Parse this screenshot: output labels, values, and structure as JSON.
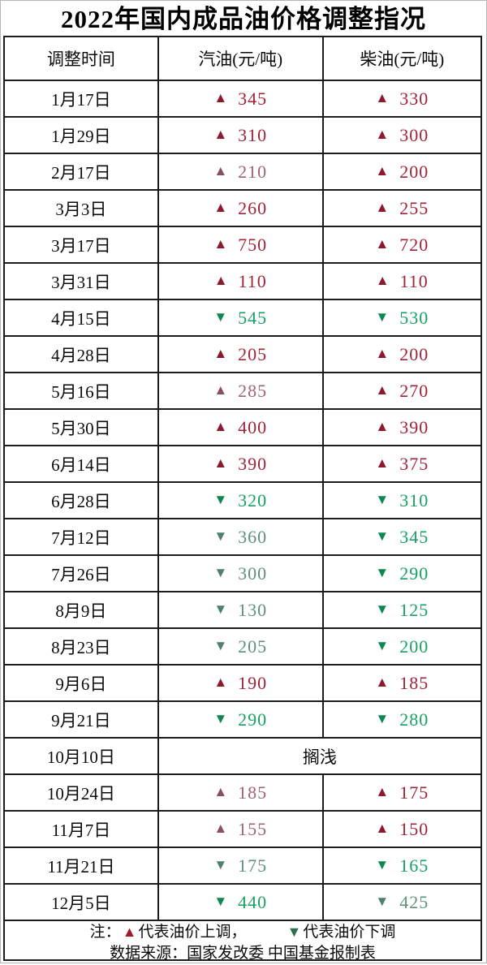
{
  "title": "2022年国内成品油价格调整指况",
  "columns": [
    "调整时间",
    "汽油(元/吨)",
    "柴油(元/吨)"
  ],
  "hold_text": "搁浅",
  "legend": {
    "note_prefix": "注：",
    "up_symbol": "▲",
    "up_text": "代表油价上调，",
    "down_symbol": "▼",
    "down_text": "代表油价下调",
    "source": "数据来源：国家发改委  中国基金报制表"
  },
  "colors": {
    "border_dark": "#1c1c1c",
    "border_light": "#b5b5b5",
    "up_strong_icon": "#8e1830",
    "up_strong_text": "#a02439",
    "up_muted_icon": "#8a4f5e",
    "up_muted_text": "#9d6570",
    "down_strong_icon": "#108753",
    "down_strong_text": "#17a163",
    "down_muted_icon": "#4f8069",
    "down_muted_text": "#5f9179",
    "legend_up": "#9c1b30",
    "legend_down": "#2f6e4e"
  },
  "rows": [
    {
      "date": "1月17日",
      "gasoline": {
        "dir": "up",
        "value": "345",
        "tone": "strong"
      },
      "diesel": {
        "dir": "up",
        "value": "330",
        "tone": "strong"
      }
    },
    {
      "date": "1月29日",
      "gasoline": {
        "dir": "up",
        "value": "310",
        "tone": "strong"
      },
      "diesel": {
        "dir": "up",
        "value": "300",
        "tone": "strong"
      }
    },
    {
      "date": "2月17日",
      "gasoline": {
        "dir": "up",
        "value": "210",
        "tone": "muted"
      },
      "diesel": {
        "dir": "up",
        "value": "200",
        "tone": "strong"
      }
    },
    {
      "date": "3月3日",
      "gasoline": {
        "dir": "up",
        "value": "260",
        "tone": "strong"
      },
      "diesel": {
        "dir": "up",
        "value": "255",
        "tone": "strong"
      }
    },
    {
      "date": "3月17日",
      "gasoline": {
        "dir": "up",
        "value": "750",
        "tone": "strong"
      },
      "diesel": {
        "dir": "up",
        "value": "720",
        "tone": "strong"
      }
    },
    {
      "date": "3月31日",
      "gasoline": {
        "dir": "up",
        "value": "110",
        "tone": "strong"
      },
      "diesel": {
        "dir": "up",
        "value": "110",
        "tone": "strong"
      }
    },
    {
      "date": "4月15日",
      "gasoline": {
        "dir": "down",
        "value": "545",
        "tone": "strong"
      },
      "diesel": {
        "dir": "down",
        "value": "530",
        "tone": "strong"
      }
    },
    {
      "date": "4月28日",
      "gasoline": {
        "dir": "up",
        "value": "205",
        "tone": "strong"
      },
      "diesel": {
        "dir": "up",
        "value": "200",
        "tone": "strong"
      }
    },
    {
      "date": "5月16日",
      "gasoline": {
        "dir": "up",
        "value": "285",
        "tone": "muted"
      },
      "diesel": {
        "dir": "up",
        "value": "270",
        "tone": "strong"
      }
    },
    {
      "date": "5月30日",
      "gasoline": {
        "dir": "up",
        "value": "400",
        "tone": "strong"
      },
      "diesel": {
        "dir": "up",
        "value": "390",
        "tone": "strong"
      }
    },
    {
      "date": "6月14日",
      "gasoline": {
        "dir": "up",
        "value": "390",
        "tone": "strong"
      },
      "diesel": {
        "dir": "up",
        "value": "375",
        "tone": "strong"
      }
    },
    {
      "date": "6月28日",
      "gasoline": {
        "dir": "down",
        "value": "320",
        "tone": "strong"
      },
      "diesel": {
        "dir": "down",
        "value": "310",
        "tone": "strong"
      }
    },
    {
      "date": "7月12日",
      "gasoline": {
        "dir": "down",
        "value": "360",
        "tone": "muted"
      },
      "diesel": {
        "dir": "down",
        "value": "345",
        "tone": "strong"
      }
    },
    {
      "date": "7月26日",
      "gasoline": {
        "dir": "down",
        "value": "300",
        "tone": "muted"
      },
      "diesel": {
        "dir": "down",
        "value": "290",
        "tone": "strong"
      }
    },
    {
      "date": "8月9日",
      "gasoline": {
        "dir": "down",
        "value": "130",
        "tone": "muted"
      },
      "diesel": {
        "dir": "down",
        "value": "125",
        "tone": "strong"
      }
    },
    {
      "date": "8月23日",
      "gasoline": {
        "dir": "down",
        "value": "205",
        "tone": "muted"
      },
      "diesel": {
        "dir": "down",
        "value": "200",
        "tone": "strong"
      }
    },
    {
      "date": "9月6日",
      "gasoline": {
        "dir": "up",
        "value": "190",
        "tone": "strong"
      },
      "diesel": {
        "dir": "up",
        "value": "185",
        "tone": "strong"
      }
    },
    {
      "date": "9月21日",
      "gasoline": {
        "dir": "down",
        "value": "290",
        "tone": "strong"
      },
      "diesel": {
        "dir": "down",
        "value": "280",
        "tone": "strong"
      }
    },
    {
      "date": "10月10日",
      "hold": true
    },
    {
      "date": "10月24日",
      "gasoline": {
        "dir": "up",
        "value": "185",
        "tone": "muted"
      },
      "diesel": {
        "dir": "up",
        "value": "175",
        "tone": "strong"
      }
    },
    {
      "date": "11月7日",
      "gasoline": {
        "dir": "up",
        "value": "155",
        "tone": "muted"
      },
      "diesel": {
        "dir": "up",
        "value": "150",
        "tone": "strong"
      }
    },
    {
      "date": "11月21日",
      "gasoline": {
        "dir": "down",
        "value": "175",
        "tone": "muted"
      },
      "diesel": {
        "dir": "down",
        "value": "165",
        "tone": "strong"
      }
    },
    {
      "date": "12月5日",
      "gasoline": {
        "dir": "down",
        "value": "440",
        "tone": "strong"
      },
      "diesel": {
        "dir": "down",
        "value": "425",
        "tone": "muted"
      }
    }
  ],
  "chart_data": {
    "type": "table",
    "title": "2022年国内成品油价格调整指况",
    "columns": [
      "调整时间",
      "汽油(元/吨)",
      "柴油(元/吨)"
    ],
    "rows": [
      {
        "date": "1月17日",
        "gasoline": 345,
        "diesel": 330,
        "direction": "up"
      },
      {
        "date": "1月29日",
        "gasoline": 310,
        "diesel": 300,
        "direction": "up"
      },
      {
        "date": "2月17日",
        "gasoline": 210,
        "diesel": 200,
        "direction": "up"
      },
      {
        "date": "3月3日",
        "gasoline": 260,
        "diesel": 255,
        "direction": "up"
      },
      {
        "date": "3月17日",
        "gasoline": 750,
        "diesel": 720,
        "direction": "up"
      },
      {
        "date": "3月31日",
        "gasoline": 110,
        "diesel": 110,
        "direction": "up"
      },
      {
        "date": "4月15日",
        "gasoline": 545,
        "diesel": 530,
        "direction": "down"
      },
      {
        "date": "4月28日",
        "gasoline": 205,
        "diesel": 200,
        "direction": "up"
      },
      {
        "date": "5月16日",
        "gasoline": 285,
        "diesel": 270,
        "direction": "up"
      },
      {
        "date": "5月30日",
        "gasoline": 400,
        "diesel": 390,
        "direction": "up"
      },
      {
        "date": "6月14日",
        "gasoline": 390,
        "diesel": 375,
        "direction": "up"
      },
      {
        "date": "6月28日",
        "gasoline": 320,
        "diesel": 310,
        "direction": "down"
      },
      {
        "date": "7月12日",
        "gasoline": 360,
        "diesel": 345,
        "direction": "down"
      },
      {
        "date": "7月26日",
        "gasoline": 300,
        "diesel": 290,
        "direction": "down"
      },
      {
        "date": "8月9日",
        "gasoline": 130,
        "diesel": 125,
        "direction": "down"
      },
      {
        "date": "8月23日",
        "gasoline": 205,
        "diesel": 200,
        "direction": "down"
      },
      {
        "date": "9月6日",
        "gasoline": 190,
        "diesel": 185,
        "direction": "up"
      },
      {
        "date": "9月21日",
        "gasoline": 290,
        "diesel": 280,
        "direction": "down"
      },
      {
        "date": "10月10日",
        "gasoline": null,
        "diesel": null,
        "direction": "hold",
        "note": "搁浅"
      },
      {
        "date": "10月24日",
        "gasoline": 185,
        "diesel": 175,
        "direction": "up"
      },
      {
        "date": "11月7日",
        "gasoline": 155,
        "diesel": 150,
        "direction": "up"
      },
      {
        "date": "11月21日",
        "gasoline": 175,
        "diesel": 165,
        "direction": "down"
      },
      {
        "date": "12月5日",
        "gasoline": 440,
        "diesel": 425,
        "direction": "down"
      }
    ],
    "legend": [
      "▲代表油价上调",
      "▼代表油价下调"
    ],
    "source": "数据来源：国家发改委  中国基金报制表"
  }
}
